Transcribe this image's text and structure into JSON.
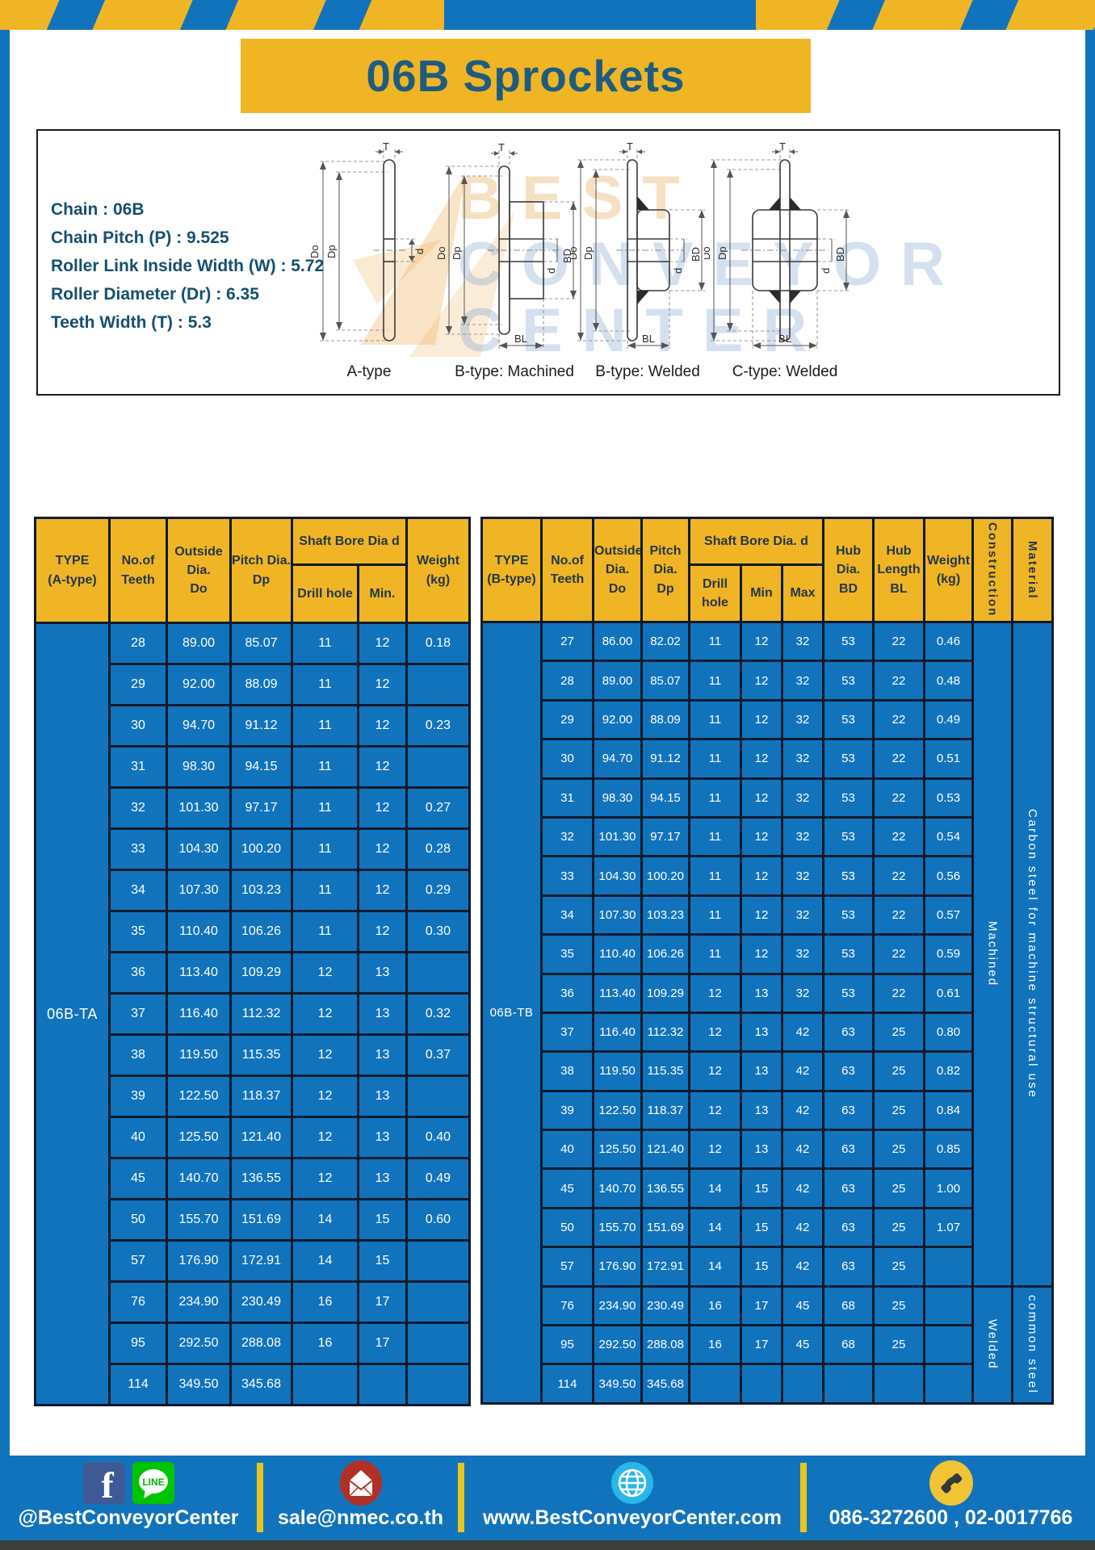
{
  "title": "06B Sprockets",
  "specs": [
    "Chain  : 06B",
    "Chain Pitch (P)  :  9.525",
    "Roller Link Inside Width (W)  :  5.72",
    "Roller Diameter (Dr)  : 6.35",
    "Teeth Width (T)  :  5.3"
  ],
  "diagram": {
    "captions": [
      "A-type",
      "B-type: Machined",
      "B-type: Welded",
      "C-type: Welded"
    ],
    "dims": {
      "do": "Do",
      "dp": "Dp",
      "t": "T",
      "d": "d",
      "bd": "BD",
      "bl": "BL"
    },
    "watermark": {
      "line1": "BEST",
      "line2": "CONVEYOR",
      "line3": "CENTER"
    }
  },
  "table_a": {
    "header": {
      "type": "TYPE\n(A-type)",
      "teeth": "No.of\nTeeth",
      "outside": "Outside\nDia.\nDo",
      "pitch": "Pitch Dia.\nDp",
      "shaft": "Shaft Bore Dia d",
      "drill": "Drill hole",
      "min": "Min.",
      "weight": "Weight\n(kg)"
    },
    "type_label": "06B-TA",
    "rows": [
      [
        "28",
        "89.00",
        "85.07",
        "11",
        "12",
        "0.18"
      ],
      [
        "29",
        "92.00",
        "88.09",
        "11",
        "12",
        ""
      ],
      [
        "30",
        "94.70",
        "91.12",
        "11",
        "12",
        "0.23"
      ],
      [
        "31",
        "98.30",
        "94.15",
        "11",
        "12",
        ""
      ],
      [
        "32",
        "101.30",
        "97.17",
        "11",
        "12",
        "0.27"
      ],
      [
        "33",
        "104.30",
        "100.20",
        "11",
        "12",
        "0.28"
      ],
      [
        "34",
        "107.30",
        "103.23",
        "11",
        "12",
        "0.29"
      ],
      [
        "35",
        "110.40",
        "106.26",
        "11",
        "12",
        "0.30"
      ],
      [
        "36",
        "113.40",
        "109.29",
        "12",
        "13",
        ""
      ],
      [
        "37",
        "116.40",
        "112.32",
        "12",
        "13",
        "0.32"
      ],
      [
        "38",
        "119.50",
        "115.35",
        "12",
        "13",
        "0.37"
      ],
      [
        "39",
        "122.50",
        "118.37",
        "12",
        "13",
        ""
      ],
      [
        "40",
        "125.50",
        "121.40",
        "12",
        "13",
        "0.40"
      ],
      [
        "45",
        "140.70",
        "136.55",
        "12",
        "13",
        "0.49"
      ],
      [
        "50",
        "155.70",
        "151.69",
        "14",
        "15",
        "0.60"
      ],
      [
        "57",
        "176.90",
        "172.91",
        "14",
        "15",
        ""
      ],
      [
        "76",
        "234.90",
        "230.49",
        "16",
        "17",
        ""
      ],
      [
        "95",
        "292.50",
        "288.08",
        "16",
        "17",
        ""
      ],
      [
        "114",
        "349.50",
        "345.68",
        "",
        "",
        ""
      ]
    ]
  },
  "table_b": {
    "header": {
      "type": "TYPE\n(B-type)",
      "teeth": "No.of\nTeeth",
      "outside": "Outside\nDia.\nDo",
      "pitch": "Pitch\nDia.\nDp",
      "shaft": "Shaft Bore Dia. d",
      "drill": "Drill hole",
      "min": "Min",
      "max": "Max",
      "hub_dia": "Hub\nDia.\nBD",
      "hub_len": "Hub\nLength\nBL",
      "weight": "Weight\n(kg)",
      "construction": "Construction",
      "material": "Material"
    },
    "type_label": "06B-TB",
    "rows": [
      [
        "27",
        "86.00",
        "82.02",
        "11",
        "12",
        "32",
        "53",
        "22",
        "0.46"
      ],
      [
        "28",
        "89.00",
        "85.07",
        "11",
        "12",
        "32",
        "53",
        "22",
        "0.48"
      ],
      [
        "29",
        "92.00",
        "88.09",
        "11",
        "12",
        "32",
        "53",
        "22",
        "0.49"
      ],
      [
        "30",
        "94.70",
        "91.12",
        "11",
        "12",
        "32",
        "53",
        "22",
        "0.51"
      ],
      [
        "31",
        "98.30",
        "94.15",
        "11",
        "12",
        "32",
        "53",
        "22",
        "0.53"
      ],
      [
        "32",
        "101.30",
        "97.17",
        "11",
        "12",
        "32",
        "53",
        "22",
        "0.54"
      ],
      [
        "33",
        "104.30",
        "100.20",
        "11",
        "12",
        "32",
        "53",
        "22",
        "0.56"
      ],
      [
        "34",
        "107.30",
        "103.23",
        "11",
        "12",
        "32",
        "53",
        "22",
        "0.57"
      ],
      [
        "35",
        "110.40",
        "106.26",
        "11",
        "12",
        "32",
        "53",
        "22",
        "0.59"
      ],
      [
        "36",
        "113.40",
        "109.29",
        "12",
        "13",
        "32",
        "53",
        "22",
        "0.61"
      ],
      [
        "37",
        "116.40",
        "112.32",
        "12",
        "13",
        "42",
        "63",
        "25",
        "0.80"
      ],
      [
        "38",
        "119.50",
        "115.35",
        "12",
        "13",
        "42",
        "63",
        "25",
        "0.82"
      ],
      [
        "39",
        "122.50",
        "118.37",
        "12",
        "13",
        "42",
        "63",
        "25",
        "0.84"
      ],
      [
        "40",
        "125.50",
        "121.40",
        "12",
        "13",
        "42",
        "63",
        "25",
        "0.85"
      ],
      [
        "45",
        "140.70",
        "136.55",
        "14",
        "15",
        "42",
        "63",
        "25",
        "1.00"
      ],
      [
        "50",
        "155.70",
        "151.69",
        "14",
        "15",
        "42",
        "63",
        "25",
        "1.07"
      ],
      [
        "57",
        "176.90",
        "172.91",
        "14",
        "15",
        "42",
        "63",
        "25",
        ""
      ],
      [
        "76",
        "234.90",
        "230.49",
        "16",
        "17",
        "45",
        "68",
        "25",
        ""
      ],
      [
        "95",
        "292.50",
        "288.08",
        "16",
        "17",
        "45",
        "68",
        "25",
        ""
      ],
      [
        "114",
        "349.50",
        "345.68",
        "",
        "",
        "",
        "",
        "",
        ""
      ]
    ],
    "construction_groups": [
      {
        "label": "Machined",
        "rows": 17
      },
      {
        "label": "Welded",
        "rows": 3
      }
    ],
    "material_groups": [
      {
        "label": "Carbon steel for machine structural use",
        "rows": 17
      },
      {
        "label": "common steel",
        "rows": 3
      }
    ]
  },
  "footer": {
    "facebook_handle": "@BestConveyorCenter",
    "line_badge": "LINE",
    "email": "sale@nmec.co.th",
    "website": "www.BestConveyorCenter.com",
    "phones": "086-3272600 , 02-0017766"
  },
  "colors": {
    "brand_blue": "#1273bd",
    "brand_yellow": "#f0b524",
    "title_text": "#1d5c80",
    "table_border": "#0e1b2b",
    "footer_divider": "#e8c51e",
    "facebook_blue": "#3d5a96",
    "line_green": "#00c300",
    "email_red": "#b03028",
    "globe_cyan": "#29b6e8",
    "phone_yellow": "#f0c434",
    "bottom_strip": "#3c4036"
  }
}
